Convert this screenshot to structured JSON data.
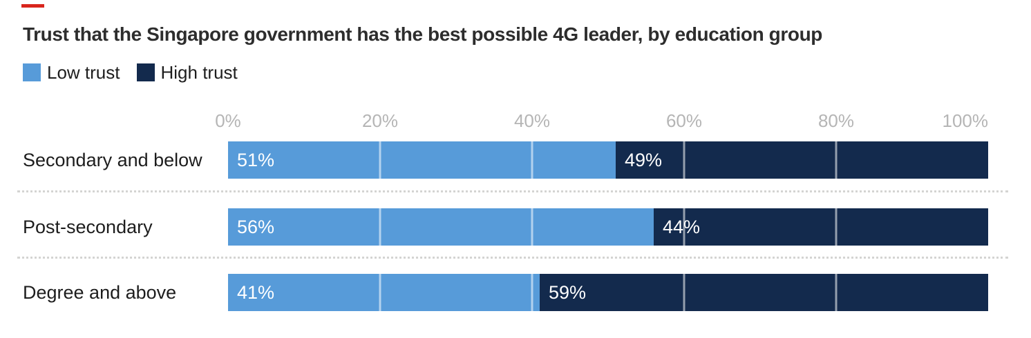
{
  "accent": {
    "dash_color": "#d9251d"
  },
  "title": "Trust that the Singapore government has the best possible 4G leader, by education group",
  "legend": [
    {
      "label": "Low trust",
      "color": "#579bd9"
    },
    {
      "label": "High trust",
      "color": "#132a4d"
    }
  ],
  "colors": {
    "low_trust": "#579bd9",
    "high_trust": "#132a4d",
    "axis_tick_text": "#b5b5b5",
    "title_text": "#2d2d2d",
    "gridline": "rgba(255,255,255,0.55)"
  },
  "chart_data": {
    "type": "bar",
    "stacked": true,
    "orientation": "horizontal",
    "title": "Trust that the Singapore government has the best possible 4G leader, by education group",
    "categories": [
      "Secondary and below",
      "Post-secondary",
      "Degree and above"
    ],
    "series": [
      {
        "name": "Low trust",
        "color": "#579bd9",
        "values": [
          51,
          56,
          41
        ]
      },
      {
        "name": "High trust",
        "color": "#132a4d",
        "values": [
          49,
          44,
          59
        ]
      }
    ],
    "value_suffix": "%",
    "xlim": [
      0,
      100
    ],
    "x_ticks": [
      "0%",
      "20%",
      "40%",
      "60%",
      "80%",
      "100%"
    ],
    "gridline_percents": [
      20,
      40,
      60,
      80
    ],
    "grid": true,
    "legend_position": "top-left"
  }
}
